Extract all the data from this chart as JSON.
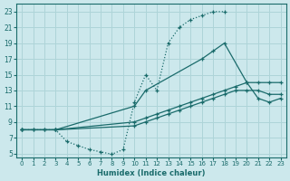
{
  "xlabel": "Humidex (Indice chaleur)",
  "bg_color": "#cce8ec",
  "grid_color": "#aed4d8",
  "line_color": "#1a6b6b",
  "xlim": [
    -0.5,
    23.5
  ],
  "ylim": [
    4.5,
    24
  ],
  "yticks": [
    5,
    7,
    9,
    11,
    13,
    15,
    17,
    19,
    21,
    23
  ],
  "xticks": [
    0,
    1,
    2,
    3,
    4,
    5,
    6,
    7,
    8,
    9,
    10,
    11,
    12,
    13,
    14,
    15,
    16,
    17,
    18,
    19,
    20,
    21,
    22,
    23
  ],
  "line1_x": [
    0,
    1,
    2,
    3,
    4,
    5,
    6,
    7,
    8,
    9,
    10,
    11,
    12,
    13,
    14,
    15,
    16,
    17,
    18
  ],
  "line1_y": [
    8,
    8,
    8,
    8,
    6.5,
    6,
    5.5,
    5.2,
    4.9,
    5.5,
    11.5,
    15,
    13,
    19,
    21,
    22,
    22.5,
    23,
    23
  ],
  "line1_style": "dotted",
  "line2_x": [
    0,
    3,
    10,
    11,
    16,
    17,
    18,
    20,
    21,
    22,
    23
  ],
  "line2_y": [
    8,
    8,
    11,
    13,
    17,
    18,
    19,
    14,
    12,
    11.5,
    12
  ],
  "line2_style": "solid",
  "line3_x": [
    0,
    3,
    10,
    11,
    12,
    13,
    14,
    15,
    16,
    17,
    18,
    19,
    20,
    21,
    22,
    23
  ],
  "line3_y": [
    8,
    8,
    9,
    9.5,
    10,
    10.5,
    11,
    11.5,
    12,
    12.5,
    13,
    13.5,
    14,
    14,
    14,
    14
  ],
  "line3_style": "solid",
  "line4_x": [
    0,
    1,
    2,
    3,
    10,
    11,
    12,
    13,
    14,
    15,
    16,
    17,
    18,
    19,
    20,
    21,
    22,
    23
  ],
  "line4_y": [
    8,
    8,
    8,
    8,
    8.5,
    9,
    9.5,
    10,
    10.5,
    11,
    11.5,
    12,
    12.5,
    13,
    13,
    13,
    12.5,
    12.5
  ],
  "line4_style": "solid"
}
